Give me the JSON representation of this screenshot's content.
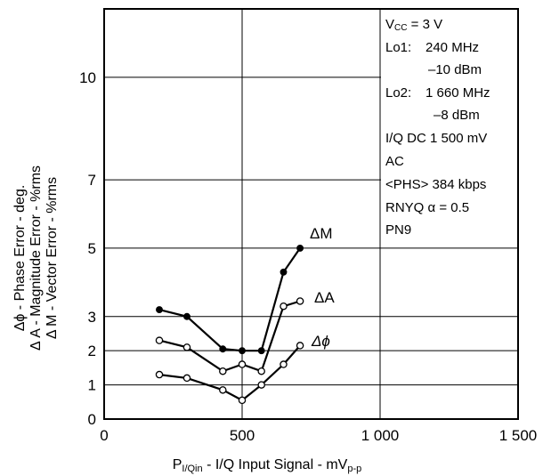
{
  "chart_data": {
    "type": "line",
    "xlabel": "P",
    "xlabel_sub": "I/Qin",
    "xlabel_mid": " - I/Q Input Signal - mV",
    "xlabel_sub2": "p-p",
    "ylabel_lines": [
      "Δϕ - Phase Error - deg.",
      "Δ A - Magnitude Error - %rms",
      "Δ M - Vector Error - %rms"
    ],
    "xlim": [
      0,
      1500
    ],
    "xticks": [
      0,
      500,
      1000,
      1500
    ],
    "xtick_labels": [
      "0",
      "500",
      "1 000",
      "1 500"
    ],
    "ylim": [
      0,
      12
    ],
    "yticks": [
      0,
      1,
      2,
      3,
      5,
      7,
      10
    ],
    "ytick_labels": [
      "0",
      "1",
      "2",
      "3",
      "5",
      "7",
      "10"
    ],
    "grid": true,
    "series": [
      {
        "name": "ΔM",
        "marker": "filled",
        "x": [
          200,
          300,
          430,
          500,
          570,
          650,
          710
        ],
        "y": [
          3.2,
          3.0,
          2.05,
          2.0,
          2.0,
          4.3,
          5.0
        ]
      },
      {
        "name": "ΔA",
        "marker": "open",
        "x": [
          200,
          300,
          430,
          500,
          570,
          650,
          710
        ],
        "y": [
          2.3,
          2.1,
          1.4,
          1.6,
          1.4,
          3.3,
          3.45
        ]
      },
      {
        "name": "Δϕ",
        "marker": "open",
        "x": [
          200,
          300,
          430,
          500,
          570,
          650,
          710
        ],
        "y": [
          1.3,
          1.2,
          0.85,
          0.55,
          1.0,
          1.6,
          2.15
        ]
      }
    ],
    "conditions": {
      "vcc_sym": "V",
      "vcc_sub": "CC",
      "vcc_val": " = 3 V",
      "lo1_label": "Lo1:",
      "lo1_freq": "240 MHz",
      "lo1_power": "–10 dBm",
      "lo2_label": "Lo2:",
      "lo2_freq": "1 660 MHz",
      "lo2_power": "–8 dBm",
      "iq_dc": "I/Q DC 1 500 mV",
      "ac": "AC",
      "phs": "<PHS> 384 kbps",
      "rnyq": "RNYQ α = 0.5",
      "pn": "PN9"
    }
  }
}
